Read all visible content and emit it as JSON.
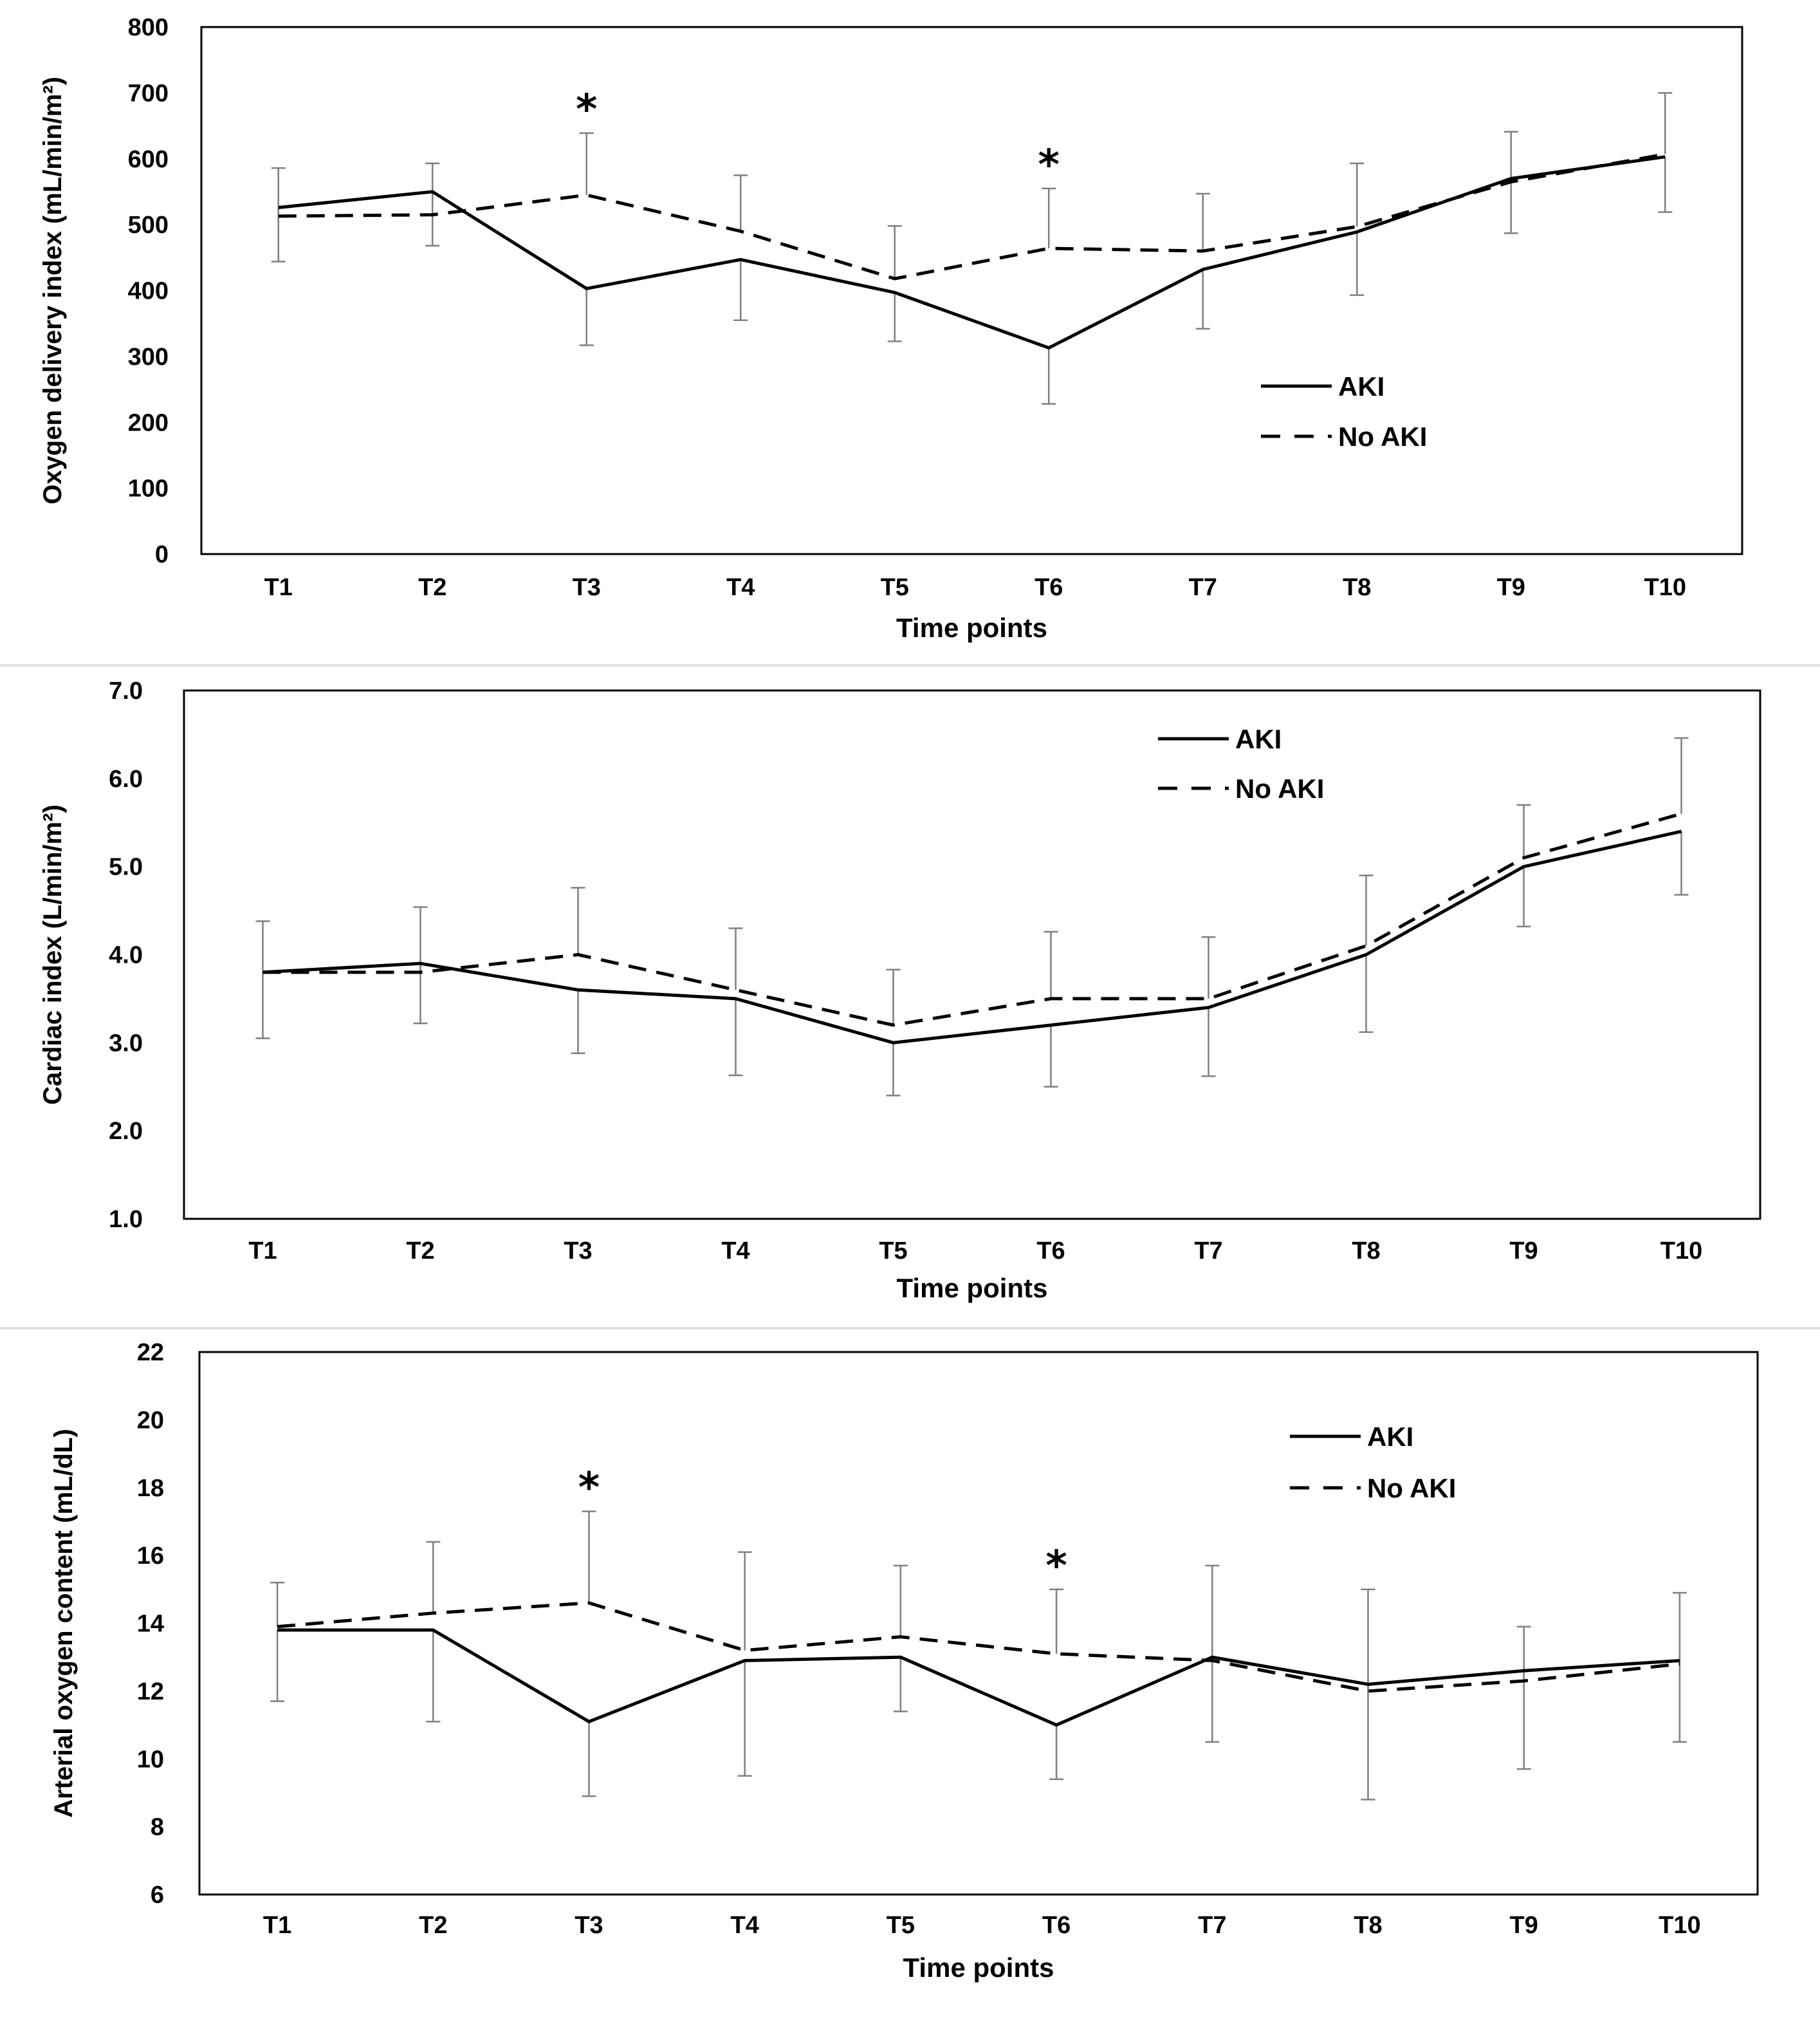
{
  "chart_data": [
    {
      "type": "line",
      "categories": [
        "T1",
        "T2",
        "T3",
        "T4",
        "T5",
        "T6",
        "T7",
        "T8",
        "T9",
        "T10"
      ],
      "xlabel": "Time points",
      "ylabel": "Oxygen delivery index (mL/min/m²)",
      "ylim": [
        0,
        800
      ],
      "yticks": [
        "0",
        "100",
        "200",
        "300",
        "400",
        "500",
        "600",
        "700",
        "800"
      ],
      "grid": false,
      "legend_position": "right-middle",
      "series": [
        {
          "name": "AKI",
          "style": "solid",
          "values": [
            526,
            550,
            403,
            447,
            397,
            313,
            432,
            489,
            570,
            603
          ],
          "error_low": [
            444,
            468,
            317,
            355,
            323,
            228,
            342,
            393,
            487,
            519
          ]
        },
        {
          "name": "No AKI",
          "style": "dashed",
          "values": [
            513,
            515,
            545,
            490,
            418,
            464,
            460,
            497,
            565,
            607
          ],
          "error_high": [
            586,
            593,
            639,
            575,
            498,
            555,
            547,
            593,
            641,
            700
          ]
        }
      ],
      "annotations": [
        {
          "category": "T3",
          "text": "*"
        },
        {
          "category": "T6",
          "text": "*"
        }
      ]
    },
    {
      "type": "line",
      "categories": [
        "T1",
        "T2",
        "T3",
        "T4",
        "T5",
        "T6",
        "T7",
        "T8",
        "T9",
        "T10"
      ],
      "xlabel": "Time points",
      "ylabel": "Cardiac index (L/min/m²)",
      "ylim": [
        1.0,
        7.0
      ],
      "yticks": [
        "1.0",
        "2.0",
        "3.0",
        "4.0",
        "5.0",
        "6.0",
        "7.0"
      ],
      "grid": false,
      "legend_position": "top-right",
      "series": [
        {
          "name": "AKI",
          "style": "solid",
          "values": [
            3.8,
            3.9,
            3.6,
            3.5,
            3.0,
            3.2,
            3.4,
            4.0,
            5.0,
            5.4
          ],
          "error_low": [
            3.05,
            3.22,
            2.88,
            2.63,
            2.4,
            2.5,
            2.62,
            3.12,
            4.32,
            4.68
          ]
        },
        {
          "name": "No AKI",
          "style": "dashed",
          "values": [
            3.8,
            3.8,
            4.0,
            3.6,
            3.2,
            3.5,
            3.5,
            4.1,
            5.1,
            5.6
          ],
          "error_high": [
            4.38,
            4.54,
            4.76,
            4.3,
            3.83,
            4.26,
            4.2,
            4.9,
            5.7,
            6.46
          ]
        }
      ],
      "annotations": []
    },
    {
      "type": "line",
      "categories": [
        "T1",
        "T2",
        "T3",
        "T4",
        "T5",
        "T6",
        "T7",
        "T8",
        "T9",
        "T10"
      ],
      "xlabel": "Time points",
      "ylabel": "Arterial oxygen content (mL/dL)",
      "ylim": [
        6,
        22
      ],
      "yticks": [
        "6",
        "8",
        "10",
        "12",
        "14",
        "16",
        "18",
        "20",
        "22"
      ],
      "grid": false,
      "legend_position": "top-right",
      "series": [
        {
          "name": "AKI",
          "style": "solid",
          "values": [
            13.8,
            13.8,
            11.1,
            12.9,
            13.0,
            11.0,
            13.0,
            12.2,
            12.6,
            12.9
          ],
          "error_low": [
            11.7,
            11.1,
            8.9,
            9.5,
            11.4,
            9.4,
            10.5,
            8.8,
            9.7,
            10.5
          ]
        },
        {
          "name": "No AKI",
          "style": "dashed",
          "values": [
            13.9,
            14.3,
            14.6,
            13.2,
            13.6,
            13.1,
            12.9,
            12.0,
            12.3,
            12.8
          ],
          "error_high": [
            15.2,
            16.4,
            17.3,
            16.1,
            15.7,
            15.0,
            15.7,
            15.0,
            13.9,
            14.9
          ]
        }
      ],
      "annotations": [
        {
          "category": "T3",
          "text": "*"
        },
        {
          "category": "T6",
          "text": "*"
        }
      ]
    }
  ]
}
